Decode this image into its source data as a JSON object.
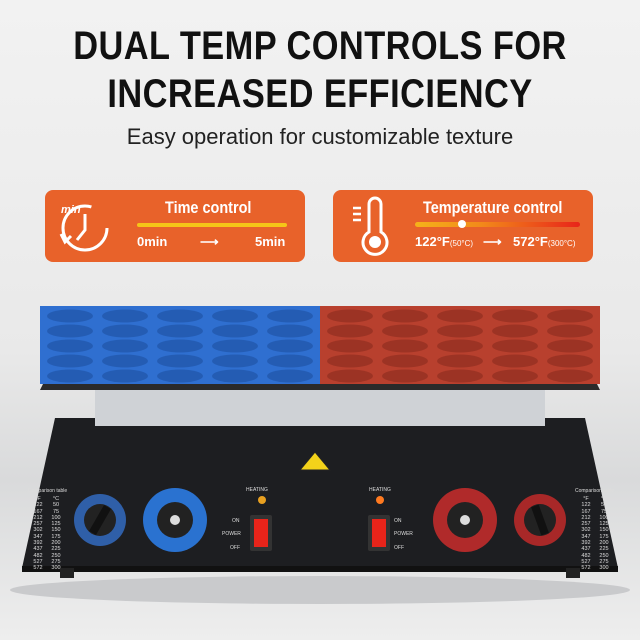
{
  "headline": {
    "line1": "DUAL TEMP CONTROLS FOR",
    "line2": "INCREASED EFFICIENCY"
  },
  "subtitle": "Easy operation for customizable texture",
  "time_panel": {
    "icon": "clock-timer-icon",
    "icon_text": "min",
    "title": "Time control",
    "start": "0min",
    "arrow": "⟶",
    "end": "5min"
  },
  "temp_panel": {
    "icon": "thermometer-icon",
    "title": "Temperature control",
    "start_f": "122°F",
    "start_c": "(50°C)",
    "arrow": "⟶",
    "end_f": "572°F",
    "end_c": "(300°C)",
    "slider_level": 0.3
  },
  "colors": {
    "accent": "#e8622a",
    "cold_plate": "#2f6fd0",
    "hot_plate": "#b8402e"
  },
  "machine": {
    "table_title": "Comparison table",
    "table_headers": [
      "°F",
      "°C"
    ],
    "table_f": [
      "122",
      "167",
      "212",
      "257",
      "302",
      "347",
      "392",
      "437",
      "482",
      "527",
      "572"
    ],
    "table_c": [
      "50",
      "75",
      "100",
      "125",
      "150",
      "175",
      "200",
      "225",
      "250",
      "275",
      "300"
    ],
    "heating": "HEATING",
    "on": "ON",
    "power": "POWER",
    "off": "OFF"
  }
}
